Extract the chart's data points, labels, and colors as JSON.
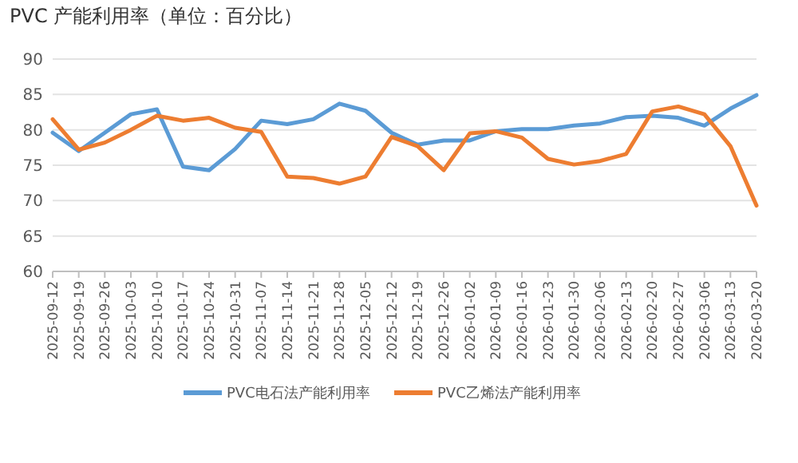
{
  "chart_data": {
    "type": "line",
    "title": "PVC 产能利用率（单位：百分比）",
    "categories": [
      "2025-09-12",
      "2025-09-19",
      "2025-09-26",
      "2025-10-03",
      "2025-10-10",
      "2025-10-17",
      "2025-10-24",
      "2025-10-31",
      "2025-11-07",
      "2025-11-14",
      "2025-11-21",
      "2025-11-28",
      "2025-12-05",
      "2025-12-12",
      "2025-12-19",
      "2025-12-26",
      "2026-01-02",
      "2026-01-09",
      "2026-01-16",
      "2026-01-23",
      "2026-01-30",
      "2026-02-06",
      "2026-02-13",
      "2026-02-20",
      "2026-02-27",
      "2026-03-06",
      "2026-03-13",
      "2026-03-20"
    ],
    "series": [
      {
        "name": "PVC电石法产能利用率",
        "color": "#5b9bd5",
        "values": [
          79.6,
          77.0,
          79.6,
          82.2,
          82.9,
          74.8,
          74.3,
          77.3,
          81.3,
          80.8,
          81.5,
          83.7,
          82.7,
          79.6,
          77.9,
          78.5,
          78.5,
          79.8,
          80.1,
          80.1,
          80.6,
          80.9,
          81.8,
          82.0,
          81.7,
          80.6,
          83.0,
          84.9
        ]
      },
      {
        "name": "PVC乙烯法产能利用率",
        "color": "#ed7d31",
        "values": [
          81.5,
          77.2,
          78.2,
          80.0,
          82.0,
          81.3,
          81.7,
          80.3,
          79.7,
          73.4,
          73.2,
          72.4,
          73.4,
          79.0,
          77.7,
          74.3,
          79.5,
          79.8,
          78.9,
          75.9,
          75.1,
          75.6,
          76.6,
          82.6,
          83.3,
          82.2,
          77.7,
          69.3
        ]
      }
    ],
    "ylim": [
      60,
      90
    ],
    "yticks": [
      60,
      65,
      70,
      75,
      80,
      85,
      90
    ],
    "grid": "y",
    "legend": "bottom",
    "marker": "none",
    "line_style": "solid"
  }
}
